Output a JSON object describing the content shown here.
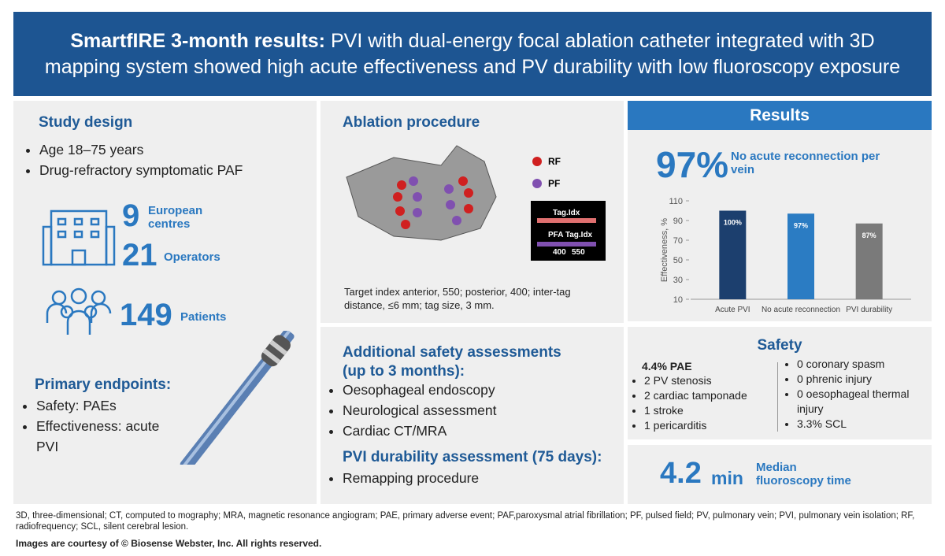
{
  "header": {
    "title_bold": "SmartfIRE 3-month results:",
    "title_rest": "PVI with dual-energy focal ablation catheter integrated with 3D mapping system showed high acute effectiveness and PV durability with low fluoroscopy exposure"
  },
  "study_design": {
    "heading": "Study design",
    "bullets": [
      "Age 18–75 years",
      "Drug-refractory symptomatic PAF"
    ],
    "stats": [
      {
        "value": "9",
        "label": "European centres"
      },
      {
        "value": "21",
        "label": "Operators"
      },
      {
        "value": "149",
        "label": "Patients"
      }
    ]
  },
  "primary_endpoints": {
    "heading": "Primary endpoints:",
    "bullets": [
      "Safety: PAEs",
      "Effectiveness: acute PVI"
    ]
  },
  "ablation": {
    "heading": "Ablation procedure",
    "legend": [
      "RF",
      "PF"
    ],
    "inset": {
      "tag": "Tag.Idx",
      "pfa_tag": "PFA Tag.Idx",
      "low": "400",
      "high": "550"
    },
    "caption": "Target index anterior, 550; posterior, 400; inter-tag distance, ≤6 mm; tag size, 3 mm."
  },
  "additional": {
    "heading": "Additional safety assessments (up to 3 months):",
    "bullets": [
      "Oesophageal endoscopy",
      "Neurological assessment",
      "Cardiac CT/MRA"
    ],
    "durability_heading": "PVI durability assessment (75 days):",
    "durability_bullets": [
      "Remapping procedure"
    ]
  },
  "results": {
    "heading": "Results",
    "big": "97%",
    "big_label": "No acute reconnection per vein"
  },
  "chart_data": {
    "type": "bar",
    "y_label": "Effectiveness, %",
    "categories": [
      "Acute PVI",
      "No acute reconnection",
      "PVI durability"
    ],
    "values": [
      100,
      97,
      87
    ],
    "value_labels": [
      "100%",
      "97%",
      "87%"
    ],
    "colors": [
      "#1c3f6e",
      "#2b7cc3",
      "#7a7a7a"
    ],
    "ylim": [
      10,
      110
    ],
    "yticks": [
      10,
      30,
      50,
      70,
      90,
      110
    ],
    "grid": false
  },
  "safety": {
    "heading": "Safety",
    "pae_title": "4.4% PAE",
    "left": [
      "2 PV stenosis",
      "2 cardiac tamponade",
      "1 stroke",
      "1 pericarditis"
    ],
    "right": [
      "0 coronary spasm",
      "0 phrenic injury",
      "0 oesophageal thermal injury",
      "3.3% SCL"
    ]
  },
  "fluoroscopy": {
    "value": "4.2",
    "unit": "min",
    "label": "Median fluoroscopy time"
  },
  "footer": {
    "abbreviations": "3D, three-dimensional; CT, computed to mography;  MRA, magnetic resonance angiogram; PAE, primary adverse event; PAF,paroxysmal atrial fibrillation; PF, pulsed field; PV, pulmonary vein; PVI, pulmonary vein isolation; RF, radiofrequency; SCL, silent cerebral lesion.",
    "courtesy": "Images are courtesy of © Biosense Webster, Inc. All rights reserved."
  }
}
